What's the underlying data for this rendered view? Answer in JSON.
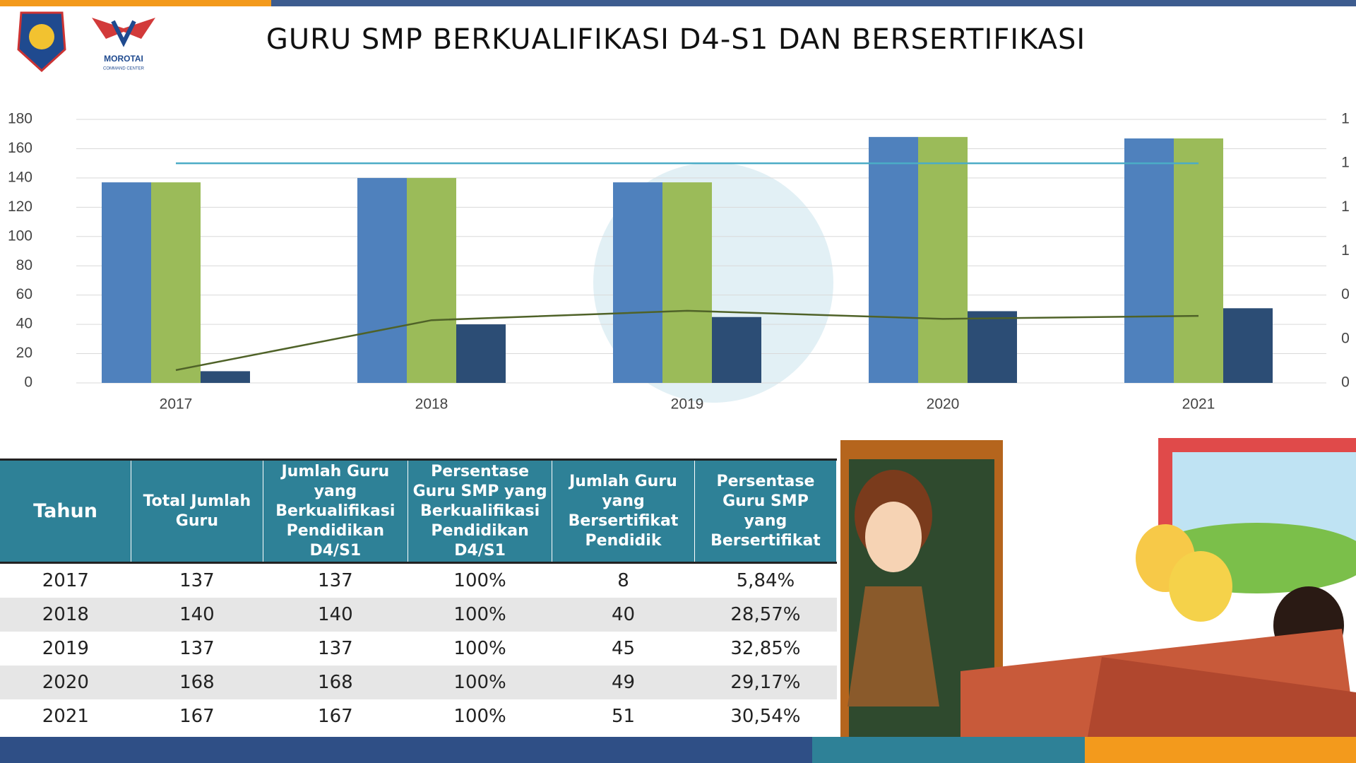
{
  "header": {
    "title": "GURU SMP BERKUALIFIKASI D4-S1 DAN BERSERTIFIKASI",
    "logo_text": "MOROTAI",
    "logo_subtext": "COMMAND CENTER"
  },
  "chart_data": {
    "type": "bar",
    "categories": [
      "2017",
      "2018",
      "2019",
      "2020",
      "2021"
    ],
    "series": [
      {
        "color": "#4f81bd",
        "values": [
          137,
          140,
          137,
          168,
          167
        ]
      },
      {
        "color": "#9bbb59",
        "values": [
          137,
          140,
          137,
          168,
          167
        ]
      },
      {
        "color": "#2c4d75",
        "values": [
          8,
          40,
          45,
          49,
          51
        ]
      },
      {
        "type": "line",
        "axis": "y2",
        "color": "#4bacc6",
        "values": [
          1,
          1,
          1,
          1,
          1
        ]
      },
      {
        "type": "line",
        "axis": "y2",
        "color": "#4f6228",
        "values": [
          0.0584,
          0.2857,
          0.3285,
          0.2917,
          0.3054
        ]
      }
    ],
    "ylim": [
      0,
      180
    ],
    "yticks": [
      0,
      20,
      40,
      60,
      80,
      100,
      120,
      140,
      160,
      180
    ],
    "y2lim": [
      0,
      1.2
    ],
    "y2ticks": [
      {
        "value": 0,
        "label": "0"
      },
      {
        "value": 0.2,
        "label": "0"
      },
      {
        "value": 0.4,
        "label": "0"
      },
      {
        "value": 0.6,
        "label": "1"
      },
      {
        "value": 0.8,
        "label": "1"
      },
      {
        "value": 1.0,
        "label": "1"
      },
      {
        "value": 1.2,
        "label": "1"
      }
    ],
    "grid": true
  },
  "table": {
    "columns": [
      "Tahun",
      "Total Jumlah Guru",
      "Jumlah Guru yang Berkualifikasi Pendidikan D4/S1",
      "Persentase Guru SMP yang Berkualifikasi Pendidikan D4/S1",
      "Jumlah Guru yang Bersertifikat Pendidik",
      "Persentase Guru SMP yang Bersertifikat"
    ],
    "rows": [
      [
        "2017",
        "137",
        "137",
        "100%",
        "8",
        "5,84%"
      ],
      [
        "2018",
        "140",
        "140",
        "100%",
        "40",
        "28,57%"
      ],
      [
        "2019",
        "137",
        "137",
        "100%",
        "45",
        "32,85%"
      ],
      [
        "2020",
        "168",
        "168",
        "100%",
        "49",
        "29,17%"
      ],
      [
        "2021",
        "167",
        "167",
        "100%",
        "51",
        "30,54%"
      ]
    ]
  }
}
